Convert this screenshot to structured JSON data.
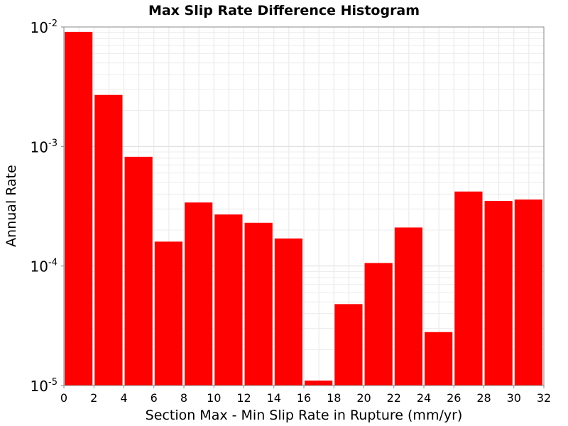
{
  "chart_data": {
    "type": "bar",
    "title": "Max Slip Rate Difference Histogram",
    "xlabel": "Section Max - Min Slip Rate in Rupture (mm/yr)",
    "ylabel": "Annual Rate",
    "x_scale": "linear",
    "y_scale": "log",
    "xlim": [
      0,
      32
    ],
    "ylim": [
      1e-05,
      0.01
    ],
    "x_ticks": [
      "0",
      "2",
      "4",
      "6",
      "8",
      "10",
      "12",
      "14",
      "16",
      "18",
      "20",
      "22",
      "24",
      "26",
      "28",
      "30",
      "32"
    ],
    "x_tick_values": [
      0,
      2,
      4,
      6,
      8,
      10,
      12,
      14,
      16,
      18,
      20,
      22,
      24,
      26,
      28,
      30,
      32
    ],
    "y_ticks": [
      {
        "value": 0.01,
        "base": "10",
        "exp": "-2"
      },
      {
        "value": 0.001,
        "base": "10",
        "exp": "-3"
      },
      {
        "value": 0.0001,
        "base": "10",
        "exp": "-4"
      },
      {
        "value": 1e-05,
        "base": "10",
        "exp": "-5"
      }
    ],
    "grid": true,
    "bar_color": "#ff0000",
    "bin_width": 2,
    "bins": [
      {
        "x_start": 0,
        "value": 0.0091
      },
      {
        "x_start": 2,
        "value": 0.0027
      },
      {
        "x_start": 4,
        "value": 0.00082
      },
      {
        "x_start": 6,
        "value": 0.00016
      },
      {
        "x_start": 8,
        "value": 0.00034
      },
      {
        "x_start": 10,
        "value": 0.00027
      },
      {
        "x_start": 12,
        "value": 0.00023
      },
      {
        "x_start": 14,
        "value": 0.00017
      },
      {
        "x_start": 16,
        "value": 1.1e-05
      },
      {
        "x_start": 18,
        "value": 4.8e-05
      },
      {
        "x_start": 20,
        "value": 0.000106
      },
      {
        "x_start": 22,
        "value": 0.00021
      },
      {
        "x_start": 24,
        "value": 2.8e-05
      },
      {
        "x_start": 26,
        "value": 0.00042
      },
      {
        "x_start": 28,
        "value": 0.00035
      },
      {
        "x_start": 30,
        "value": 0.00036
      }
    ]
  }
}
